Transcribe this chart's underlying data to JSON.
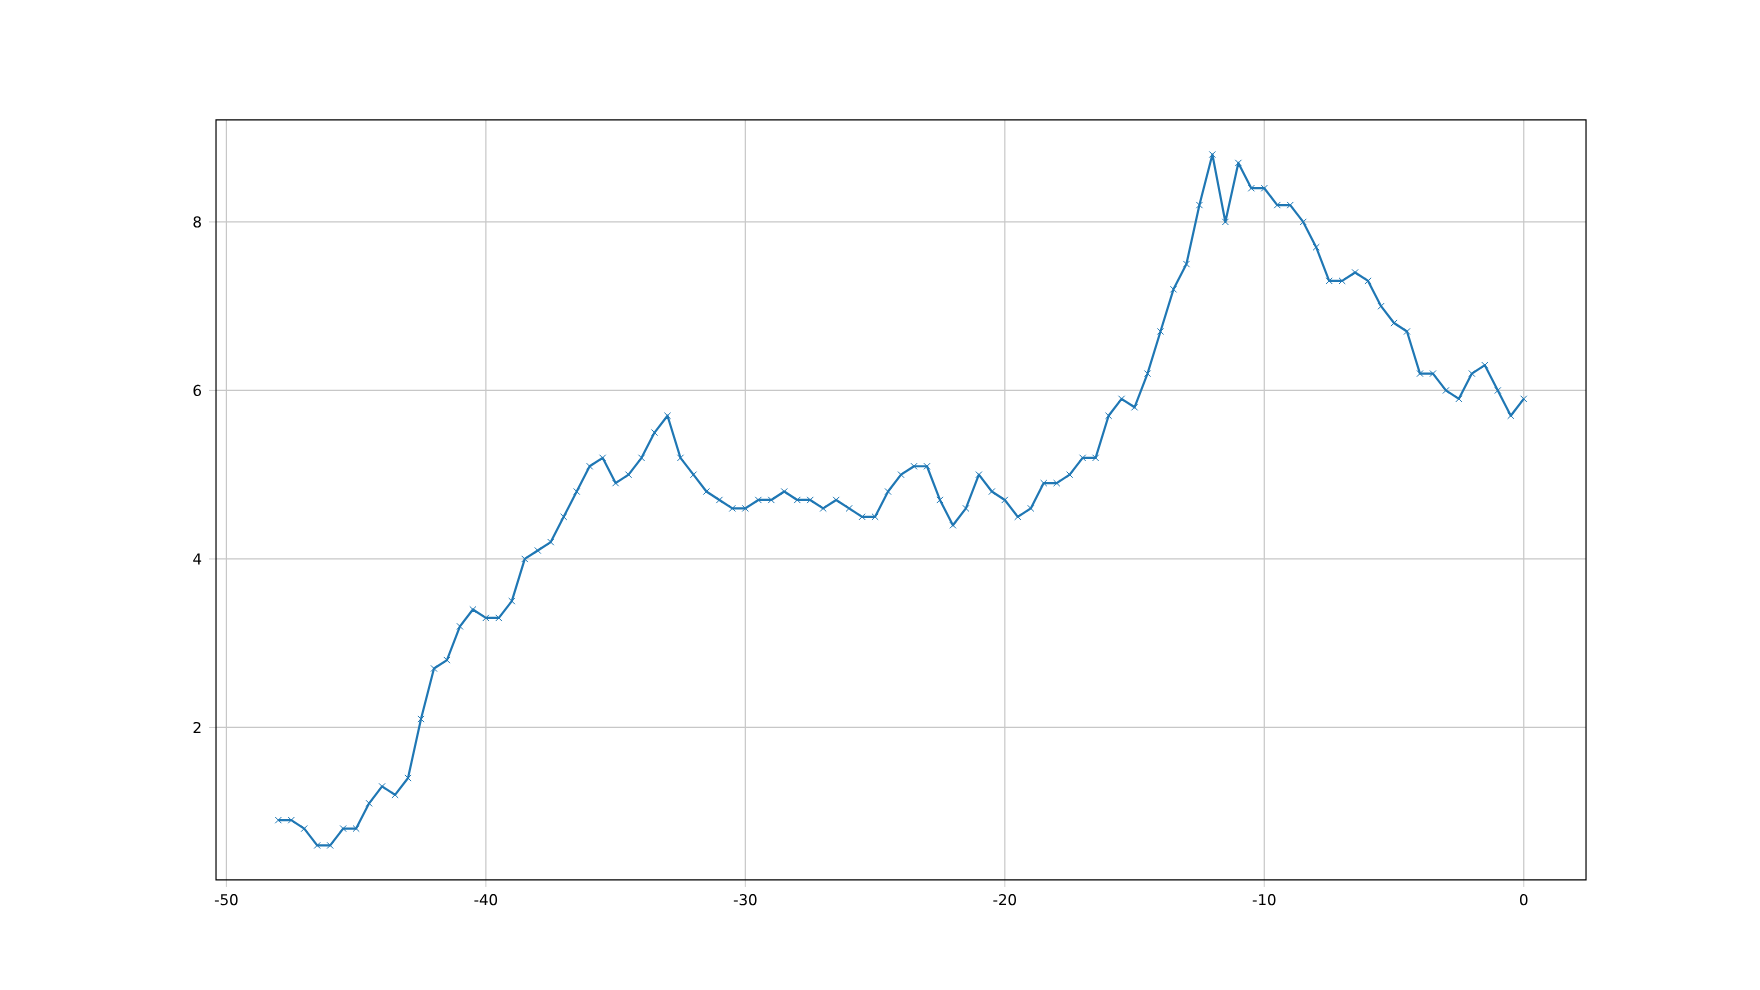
{
  "chart_data": {
    "type": "line",
    "x": [
      -48,
      -47.5,
      -47,
      -46.5,
      -46,
      -45.5,
      -45,
      -44.5,
      -44,
      -43.5,
      -43,
      -42.5,
      -42,
      -41.5,
      -41,
      -40.5,
      -40,
      -39.5,
      -39,
      -38.5,
      -38,
      -37.5,
      -37,
      -36.5,
      -36,
      -35.5,
      -35,
      -34.5,
      -34,
      -33.5,
      -33,
      -32.5,
      -32,
      -31.5,
      -31,
      -30.5,
      -30,
      -29.5,
      -29,
      -28.5,
      -28,
      -27.5,
      -27,
      -26.5,
      -26,
      -25.5,
      -25,
      -24.5,
      -24,
      -23.5,
      -23,
      -22.5,
      -22,
      -21.5,
      -21,
      -20.5,
      -20,
      -19.5,
      -19,
      -18.5,
      -18,
      -17.5,
      -17,
      -16.5,
      -16,
      -15.5,
      -15,
      -14.5,
      -14,
      -13.5,
      -13,
      -12.5,
      -12,
      -11.5,
      -11,
      -10.5,
      -10,
      -9.5,
      -9,
      -8.5,
      -8,
      -7.5,
      -7,
      -6.5,
      -6,
      -5.5,
      -5,
      -4.5,
      -4,
      -3.5,
      -3,
      -2.5,
      -2,
      -1.5,
      -1,
      -0.5,
      0
    ],
    "series": [
      {
        "color": "#1f77b4",
        "values": [
          0.9,
          0.9,
          0.8,
          0.6,
          0.6,
          0.8,
          0.8,
          1.1,
          1.3,
          1.2,
          1.4,
          2.1,
          2.7,
          2.8,
          3.2,
          3.4,
          3.3,
          3.3,
          3.5,
          4.0,
          4.1,
          4.2,
          4.5,
          4.8,
          5.1,
          5.2,
          4.9,
          5.0,
          5.2,
          5.5,
          5.7,
          5.2,
          5.0,
          4.8,
          4.7,
          4.6,
          4.6,
          4.7,
          4.7,
          4.8,
          4.7,
          4.7,
          4.6,
          4.7,
          4.6,
          4.5,
          4.5,
          4.8,
          5.0,
          5.1,
          5.1,
          4.7,
          4.4,
          4.6,
          5.0,
          4.8,
          4.7,
          4.5,
          4.6,
          4.9,
          4.9,
          5.0,
          5.2,
          5.2,
          5.7,
          5.9,
          5.8,
          6.2,
          6.7,
          7.2,
          7.5,
          8.2,
          8.8,
          8.0,
          8.7,
          8.4,
          8.4,
          8.2,
          8.2,
          8.0,
          7.7,
          7.3,
          7.3,
          7.4,
          7.3,
          7.0,
          6.8,
          6.7,
          6.2,
          6.2,
          6.0,
          5.9,
          6.2,
          6.3,
          6.0,
          5.7,
          5.9
        ]
      }
    ],
    "xlim": [
      -50.4,
      2.4
    ],
    "ylim": [
      0.19,
      9.21
    ],
    "xticks": [
      -50,
      -40,
      -30,
      -20,
      -10,
      0
    ],
    "yticks": [
      2,
      4,
      6,
      8
    ],
    "grid": true,
    "marker": "cross",
    "line_style": "solid"
  }
}
